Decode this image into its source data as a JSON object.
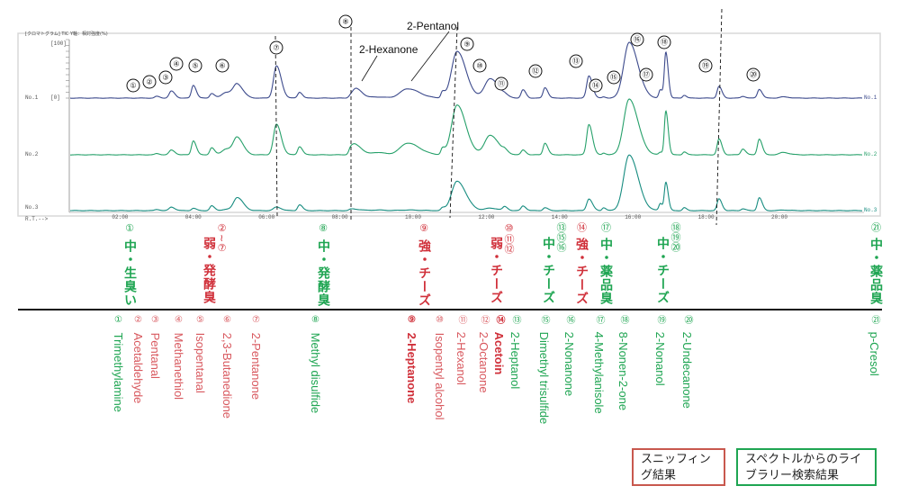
{
  "colors": {
    "sniffing_red": "#d0303a",
    "sniffing_red_light": "#d8585e",
    "library_green": "#1fa552",
    "trace1": "#3c4a8c",
    "trace2": "#26a06a",
    "trace3": "#178c80",
    "legend_red_border": "#c8584e",
    "legend_green_border": "#1fa552"
  },
  "chart_data": {
    "type": "line",
    "title": "[クロマトグラム] TIC Y軸：相対強度(%)",
    "xlabel": "R.T.-->",
    "y_top_label": "[100]",
    "y_zero_label": "[0]",
    "xlim": [
      0,
      22.3
    ],
    "ylim": [
      0,
      100
    ],
    "x_ticks": [
      {
        "t": 2,
        "label": "02:00"
      },
      {
        "t": 4,
        "label": "04:00"
      },
      {
        "t": 6,
        "label": "06:00"
      },
      {
        "t": 8,
        "label": "08:00"
      },
      {
        "t": 10,
        "label": "10:00"
      },
      {
        "t": 12,
        "label": "12:00"
      },
      {
        "t": 14,
        "label": "14:00"
      },
      {
        "t": 16,
        "label": "16:00"
      },
      {
        "t": 18,
        "label": "18:00"
      },
      {
        "t": 20,
        "label": "20:00"
      }
    ],
    "series": [
      {
        "name": "No.1",
        "left_label": "No.1",
        "right_label": "No.1"
      },
      {
        "name": "No.2",
        "left_label": "No.2",
        "right_label": "No.2"
      },
      {
        "name": "No.3",
        "left_label": "No.3",
        "right_label": "No.3"
      }
    ],
    "peaks": [
      {
        "t": 3.0,
        "width": 0.05,
        "heights": [
          3,
          2,
          2
        ]
      },
      {
        "t": 3.4,
        "width": 0.06,
        "heights": [
          12,
          8,
          6
        ]
      },
      {
        "t": 4.0,
        "width": 0.05,
        "heights": [
          22,
          24,
          4
        ]
      },
      {
        "t": 4.5,
        "width": 0.05,
        "heights": [
          8,
          12,
          8
        ]
      },
      {
        "t": 4.9,
        "width": 0.12,
        "heights": [
          10,
          10,
          2
        ]
      },
      {
        "t": 5.2,
        "width": 0.1,
        "heights": [
          22,
          28,
          22
        ]
      },
      {
        "t": 6.27,
        "width": 0.08,
        "heights": [
          55,
          52,
          6
        ]
      },
      {
        "t": 6.9,
        "width": 0.05,
        "heights": [
          10,
          14,
          10
        ]
      },
      {
        "t": 8.3,
        "width": 0.05,
        "heights": [
          3,
          10,
          2
        ]
      },
      {
        "t": 8.45,
        "width": 0.1,
        "heights": [
          16,
          16,
          2
        ]
      },
      {
        "t": 9.0,
        "width": 0.15,
        "heights": [
          2,
          4,
          1
        ]
      },
      {
        "t": 9.85,
        "width": 0.2,
        "heights": [
          16,
          20,
          1
        ]
      },
      {
        "t": 10.8,
        "width": 0.04,
        "heights": [
          10,
          10,
          4
        ]
      },
      {
        "t": 11.2,
        "width": 0.15,
        "heights": [
          80,
          85,
          50
        ]
      },
      {
        "t": 12.1,
        "width": 0.15,
        "heights": [
          33,
          33,
          4
        ]
      },
      {
        "t": 12.5,
        "width": 0.05,
        "heights": [
          2,
          4,
          6
        ]
      },
      {
        "t": 13.0,
        "width": 0.05,
        "heights": [
          14,
          8,
          8
        ]
      },
      {
        "t": 13.6,
        "width": 0.05,
        "heights": [
          18,
          20,
          5
        ]
      },
      {
        "t": 14.8,
        "width": 0.06,
        "heights": [
          38,
          52,
          20
        ]
      },
      {
        "t": 15.2,
        "width": 0.04,
        "heights": [
          2,
          3,
          5
        ]
      },
      {
        "t": 15.9,
        "width": 0.15,
        "heights": [
          95,
          95,
          95
        ]
      },
      {
        "t": 16.75,
        "width": 0.04,
        "heights": [
          14,
          4,
          12
        ]
      },
      {
        "t": 16.9,
        "width": 0.04,
        "heights": [
          78,
          75,
          48
        ]
      },
      {
        "t": 17.4,
        "width": 0.04,
        "heights": [
          5,
          5,
          5
        ]
      },
      {
        "t": 18.35,
        "width": 0.05,
        "heights": [
          20,
          27,
          20
        ]
      },
      {
        "t": 19.0,
        "width": 0.05,
        "heights": [
          3,
          10,
          3
        ]
      },
      {
        "t": 19.45,
        "width": 0.05,
        "heights": [
          15,
          27,
          22
        ]
      },
      {
        "t": 20.1,
        "width": 0.1,
        "heights": [
          2,
          4,
          1
        ]
      }
    ],
    "peak_labels": [
      "①",
      "②",
      "③",
      "④",
      "⑤",
      "⑥",
      "⑦",
      "⑧",
      "⑨",
      "⑩",
      "⑪",
      "⑫",
      "⑬",
      "⑭",
      "⑮",
      "⑯",
      "⑰",
      "⑱",
      "⑲",
      "⑳"
    ],
    "callouts": [
      "2-Hexanone",
      "2-Pentanol"
    ],
    "grid": false
  },
  "sniffing": [
    {
      "nums": "①",
      "text": "中・生臭い",
      "tone": "green"
    },
    {
      "nums": "②~⑦",
      "text": "弱・発酵臭",
      "tone": "red"
    },
    {
      "nums": "⑧",
      "text": "中・発酵臭",
      "tone": "green"
    },
    {
      "nums": "⑨",
      "text": "強・チーズ",
      "tone": "red"
    },
    {
      "nums": "⑩⑪⑫",
      "text": "弱・チーズ",
      "tone": "red"
    },
    {
      "nums": "⑬⑮⑯",
      "text": "中・チーズ",
      "tone": "green"
    },
    {
      "nums": "⑭",
      "text": "強・チーズ",
      "tone": "red"
    },
    {
      "nums": "⑰",
      "text": "中・薬品臭",
      "tone": "green"
    },
    {
      "nums": "⑱⑲⑳",
      "text": "中・チーズ",
      "tone": "green"
    },
    {
      "nums": "㉑",
      "text": "中・薬品臭",
      "tone": "green"
    }
  ],
  "compounds": [
    {
      "num": "①",
      "name": "Trimethylamine",
      "tone": "green"
    },
    {
      "num": "②",
      "name": "Acetaldehyde",
      "tone": "red_light"
    },
    {
      "num": "③",
      "name": "Pentanal",
      "tone": "red_light"
    },
    {
      "num": "④",
      "name": "Methanethiol",
      "tone": "red_light"
    },
    {
      "num": "⑤",
      "name": "Isopentanal",
      "tone": "red_light"
    },
    {
      "num": "⑥",
      "name": "2,3-Butanedione",
      "tone": "red_light"
    },
    {
      "num": "⑦",
      "name": "2-Pentanone",
      "tone": "red_light"
    },
    {
      "num": "⑧",
      "name": "Methyl disulfide",
      "tone": "green"
    },
    {
      "num": "⑨",
      "name": "2-Heptanone",
      "tone": "red"
    },
    {
      "num": "⑩",
      "name": "Isopentyl alcohol",
      "tone": "red_light"
    },
    {
      "num": "⑪",
      "name": "2-Hexanol",
      "tone": "red_light"
    },
    {
      "num": "⑫",
      "name": "2-Octanone",
      "tone": "red_light"
    },
    {
      "num": "⑭",
      "name": "Acetoin",
      "tone": "red"
    },
    {
      "num": "⑬",
      "name": "2-Heptanol",
      "tone": "green"
    },
    {
      "num": "⑮",
      "name": "Dimethyl trisulfide",
      "tone": "green"
    },
    {
      "num": "⑯",
      "name": "2-Nonanone",
      "tone": "green"
    },
    {
      "num": "⑰",
      "name": "4-Methylanisole",
      "tone": "green"
    },
    {
      "num": "⑱",
      "name": "8-Nonen-2-one",
      "tone": "green"
    },
    {
      "num": "⑲",
      "name": "2-Nonanol",
      "tone": "green"
    },
    {
      "num": "⑳",
      "name": "2-Undecanone",
      "tone": "green"
    },
    {
      "num": "㉑",
      "name": "p-Cresol",
      "tone": "green"
    }
  ],
  "legend": {
    "sniffing": "スニッフィング結果",
    "library": "スペクトルからのライブラリー検索結果"
  }
}
